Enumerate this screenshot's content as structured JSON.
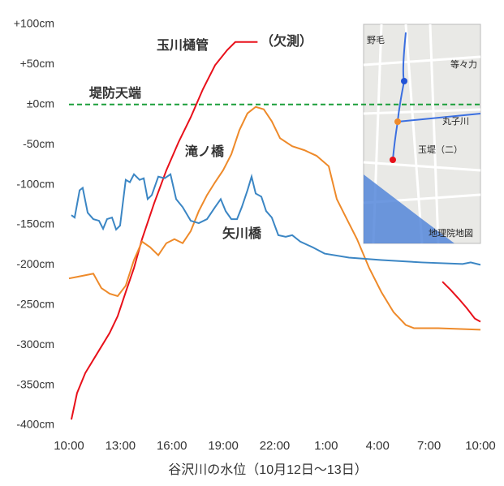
{
  "chart_data": {
    "type": "line",
    "x_title": "谷沢川の水位（10月12日～13日）",
    "xlim": [
      0,
      24
    ],
    "xticks": [
      {
        "value": 0,
        "label": "10:00"
      },
      {
        "value": 3,
        "label": "13:00"
      },
      {
        "value": 6,
        "label": "16:00"
      },
      {
        "value": 9,
        "label": "19:00"
      },
      {
        "value": 12,
        "label": "22:00"
      },
      {
        "value": 15,
        "label": "1:00"
      },
      {
        "value": 18,
        "label": "4:00"
      },
      {
        "value": 21,
        "label": "7:00"
      },
      {
        "value": 24,
        "label": "10:00"
      }
    ],
    "ylim": [
      -400,
      100
    ],
    "yticks": [
      {
        "value": 100,
        "label": "+100cm"
      },
      {
        "value": 50,
        "label": "+50cm"
      },
      {
        "value": 0,
        "label": "±0cm"
      },
      {
        "value": -50,
        "label": "-50cm"
      },
      {
        "value": -100,
        "label": "-100cm"
      },
      {
        "value": -150,
        "label": "-150cm"
      },
      {
        "value": -200,
        "label": "-200cm"
      },
      {
        "value": -250,
        "label": "-250cm"
      },
      {
        "value": -300,
        "label": "-300cm"
      },
      {
        "value": -350,
        "label": "-350cm"
      },
      {
        "value": -400,
        "label": "-400cm"
      }
    ],
    "grid": false,
    "legend": "inline",
    "reference": {
      "value": 0,
      "label": "堤防天端",
      "color": "#1a9e3a"
    },
    "missing_note": "（欠測）",
    "series": [
      {
        "name": "玉川樋管",
        "color": "#e8101a",
        "x": [
          0.14,
          0.47,
          0.95,
          1.66,
          2.37,
          2.84,
          3.31,
          3.79,
          4.26,
          4.97,
          5.68,
          6.39,
          7.1,
          7.81,
          8.52,
          9.23,
          9.7,
          11.0,
          null,
          21.78,
          22.25,
          22.72,
          23.2,
          23.67,
          24
        ],
        "values": [
          -393,
          -360,
          -335,
          -310,
          -285,
          -264,
          -234,
          -204,
          -168,
          -123,
          -82,
          -47,
          -16,
          19,
          49,
          68,
          78,
          78,
          null,
          -221,
          -231,
          -242,
          -254,
          -267,
          -271
        ]
      },
      {
        "name": "滝ノ橋",
        "color": "#ee8a2a",
        "x": [
          0,
          0.47,
          0.95,
          1.42,
          1.89,
          2.37,
          2.84,
          3.31,
          3.79,
          4.26,
          4.73,
          5.21,
          5.68,
          6.15,
          6.63,
          7.1,
          7.57,
          8.05,
          8.52,
          8.99,
          9.47,
          9.94,
          10.41,
          10.89,
          11.36,
          11.83,
          12.31,
          13.02,
          13.73,
          14.44,
          15.15,
          15.62,
          16.09,
          16.8,
          17.51,
          18.22,
          18.93,
          19.64,
          20.12,
          21.54,
          24
        ],
        "values": [
          -217,
          -215,
          -213,
          -211,
          -229,
          -236,
          -239,
          -226,
          -194,
          -171,
          -178,
          -188,
          -173,
          -168,
          -173,
          -158,
          -133,
          -113,
          -97,
          -82,
          -62,
          -32,
          -11,
          -3,
          -6,
          -21,
          -42,
          -52,
          -57,
          -64,
          -77,
          -118,
          -138,
          -168,
          -204,
          -234,
          -259,
          -275,
          -279,
          -279,
          -281
        ]
      },
      {
        "name": "矢川橋",
        "color": "#3b86c4",
        "x": [
          0.14,
          0.33,
          0.62,
          0.8,
          1.09,
          1.42,
          1.75,
          1.99,
          2.22,
          2.51,
          2.75,
          2.98,
          3.31,
          3.55,
          3.79,
          4.12,
          4.36,
          4.59,
          4.83,
          5.21,
          5.58,
          5.92,
          6.25,
          6.63,
          7.1,
          7.57,
          8.05,
          8.52,
          8.85,
          9.14,
          9.47,
          9.8,
          10.08,
          10.41,
          10.65,
          10.89,
          11.22,
          11.5,
          11.83,
          12.21,
          12.64,
          13.02,
          13.49,
          14.2,
          14.91,
          16.33,
          18.22,
          20.59,
          22.96,
          23.43,
          24
        ],
        "values": [
          -138,
          -141,
          -107,
          -104,
          -135,
          -143,
          -145,
          -155,
          -143,
          -141,
          -156,
          -151,
          -94,
          -97,
          -87,
          -94,
          -92,
          -118,
          -113,
          -90,
          -92,
          -87,
          -118,
          -128,
          -145,
          -148,
          -143,
          -128,
          -118,
          -133,
          -143,
          -143,
          -128,
          -107,
          -90,
          -111,
          -115,
          -133,
          -141,
          -163,
          -165,
          -163,
          -171,
          -178,
          -186,
          -191,
          -194,
          -197,
          -199,
          -197,
          -200
        ]
      }
    ]
  },
  "inset_map": {
    "labels": [
      "野毛",
      "等々力",
      "丸子川",
      "玉堤（二）",
      "地理院地図"
    ]
  }
}
